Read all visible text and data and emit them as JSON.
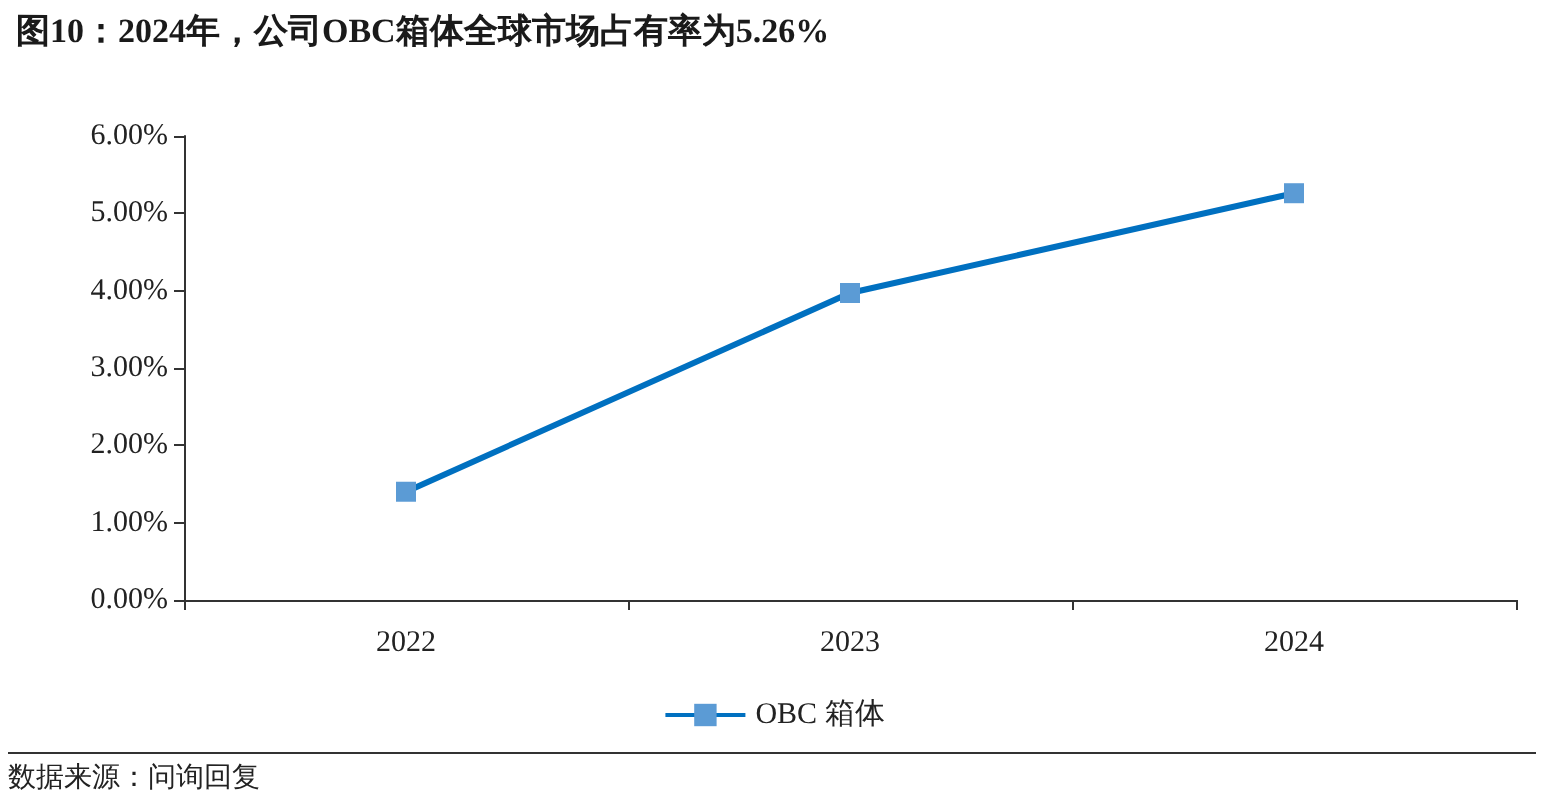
{
  "chart_data": {
    "type": "line",
    "title": "图10：2024年，公司OBC箱体全球市场占有率为5.26%",
    "categories": [
      "2022",
      "2023",
      "2024"
    ],
    "series": [
      {
        "name": "OBC 箱体",
        "color": "#0070c0",
        "values": [
          1.4,
          3.97,
          5.26
        ]
      }
    ],
    "ylim": [
      0,
      6
    ],
    "yticks": [
      {
        "value": 0,
        "label": "0.00%"
      },
      {
        "value": 1,
        "label": "1.00%"
      },
      {
        "value": 2,
        "label": "2.00%"
      },
      {
        "value": 3,
        "label": "3.00%"
      },
      {
        "value": 4,
        "label": "4.00%"
      },
      {
        "value": 5,
        "label": "5.00%"
      },
      {
        "value": 6,
        "label": "6.00%"
      }
    ],
    "grid": false,
    "legend": "bottom",
    "marker": "square",
    "line_style": "solid",
    "annotations": [
      "数据来源：问询回复"
    ]
  }
}
